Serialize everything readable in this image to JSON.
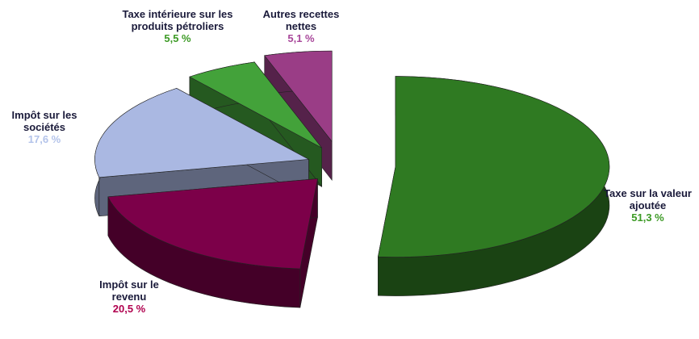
{
  "chart_data": {
    "type": "pie",
    "categories": [
      "Taxe sur la valeur ajoutée",
      "Impôt sur le revenu",
      "Impôt sur les sociétés",
      "Taxe intérieure sur les produits pétroliers",
      "Autres recettes nettes"
    ],
    "values": [
      51.3,
      20.5,
      17.6,
      5.5,
      5.1
    ],
    "value_labels": [
      "51,3 %",
      "20,5 %",
      "17,6 %",
      "5,5 %",
      "5,1 %"
    ],
    "colors": [
      "#2f7a22",
      "#7c0049",
      "#aab8e2",
      "#43a23a",
      "#9a3d86"
    ],
    "label_colors": [
      "#3c9a25",
      "#b0004e",
      "#b3c3ea",
      "#3c9a25",
      "#a8479a"
    ]
  }
}
